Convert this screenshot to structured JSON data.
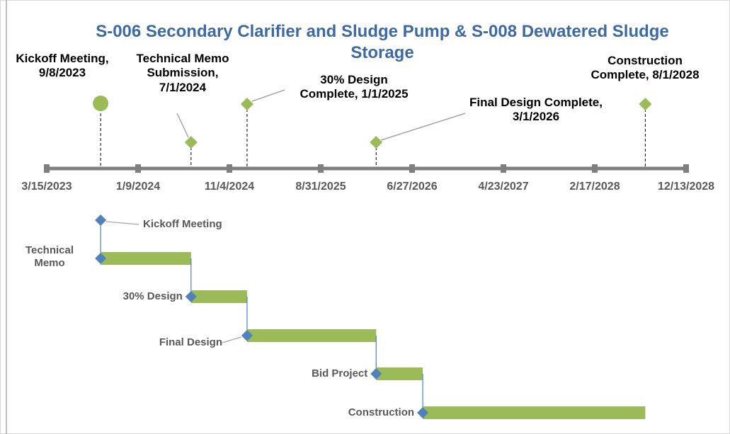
{
  "chart_data": {
    "type": "timeline",
    "title": "S-006 Secondary Clarifier and Sludge Pump & S-008 Dewatered Sludge Storage",
    "xlim": [
      "3/15/2023",
      "12/13/2028"
    ],
    "xticks": [
      "3/15/2023",
      "1/9/2024",
      "11/4/2024",
      "8/31/2025",
      "6/27/2026",
      "4/23/2027",
      "2/17/2028",
      "12/13/2028"
    ],
    "milestone_color": "#9bbb59",
    "milestones": [
      {
        "label": "Kickoff Meeting, 9/8/2023",
        "date": "9/8/2023",
        "shape": "circle"
      },
      {
        "label": "Technical Memo Submission, 7/1/2024",
        "date": "7/1/2024",
        "shape": "diamond"
      },
      {
        "label": "30% Design Complete, 1/1/2025",
        "date": "1/1/2025",
        "shape": "diamond"
      },
      {
        "label": "Final Design Complete, 3/1/2026",
        "date": "3/1/2026",
        "shape": "diamond"
      },
      {
        "label": "Construction Complete, 8/1/2028",
        "date": "8/1/2028",
        "shape": "diamond"
      }
    ],
    "bar_color": "#9bbb59",
    "marker_color": "#4f81bd",
    "tasks": [
      {
        "name": "Kickoff Meeting",
        "start": "9/8/2023",
        "end": "9/8/2023"
      },
      {
        "name": "Technical Memo",
        "start": "9/8/2023",
        "end": "7/1/2024"
      },
      {
        "name": "30% Design",
        "start": "7/1/2024",
        "end": "1/1/2025"
      },
      {
        "name": "Final Design",
        "start": "1/1/2025",
        "end": "3/1/2026"
      },
      {
        "name": "Bid Project",
        "start": "3/1/2026",
        "end": "8/1/2026"
      },
      {
        "name": "Construction",
        "start": "8/1/2026",
        "end": "8/1/2028"
      }
    ]
  }
}
